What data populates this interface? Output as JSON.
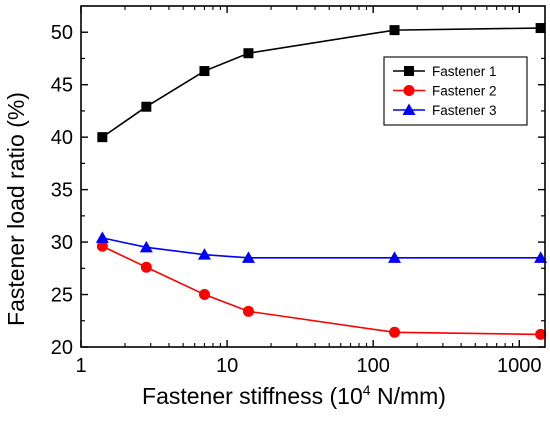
{
  "chart_data": {
    "type": "line",
    "xscale": "log",
    "xlabel_main": "Fastener stiffness (10",
    "xlabel_sup": "4",
    "xlabel_tail": " N/mm)",
    "ylabel": "Fastener load ratio (%)",
    "xlim": [
      1,
      1500
    ],
    "ylim": [
      20,
      52.5
    ],
    "xticks": [
      1,
      10,
      100,
      1000
    ],
    "xtick_labels": [
      "1",
      "10",
      "100",
      "1000"
    ],
    "yticks": [
      20,
      25,
      30,
      35,
      40,
      45,
      50
    ],
    "ytick_labels": [
      "20",
      "25",
      "30",
      "35",
      "40",
      "45",
      "50"
    ],
    "legend_position": "top-right",
    "grid": false,
    "x": [
      1.4,
      2.8,
      7,
      14,
      140,
      1400
    ],
    "series": [
      {
        "name": "Fastener 1",
        "color": "#000000",
        "marker": "square",
        "values": [
          40.0,
          42.9,
          46.3,
          48.0,
          50.2,
          50.4
        ]
      },
      {
        "name": "Fastener 2",
        "color": "#ff0000",
        "marker": "circle",
        "values": [
          29.6,
          27.6,
          25.0,
          23.4,
          21.4,
          21.2
        ]
      },
      {
        "name": "Fastener 3",
        "color": "#0000ff",
        "marker": "triangle",
        "values": [
          30.4,
          29.5,
          28.8,
          28.5,
          28.5,
          28.5
        ]
      }
    ]
  }
}
